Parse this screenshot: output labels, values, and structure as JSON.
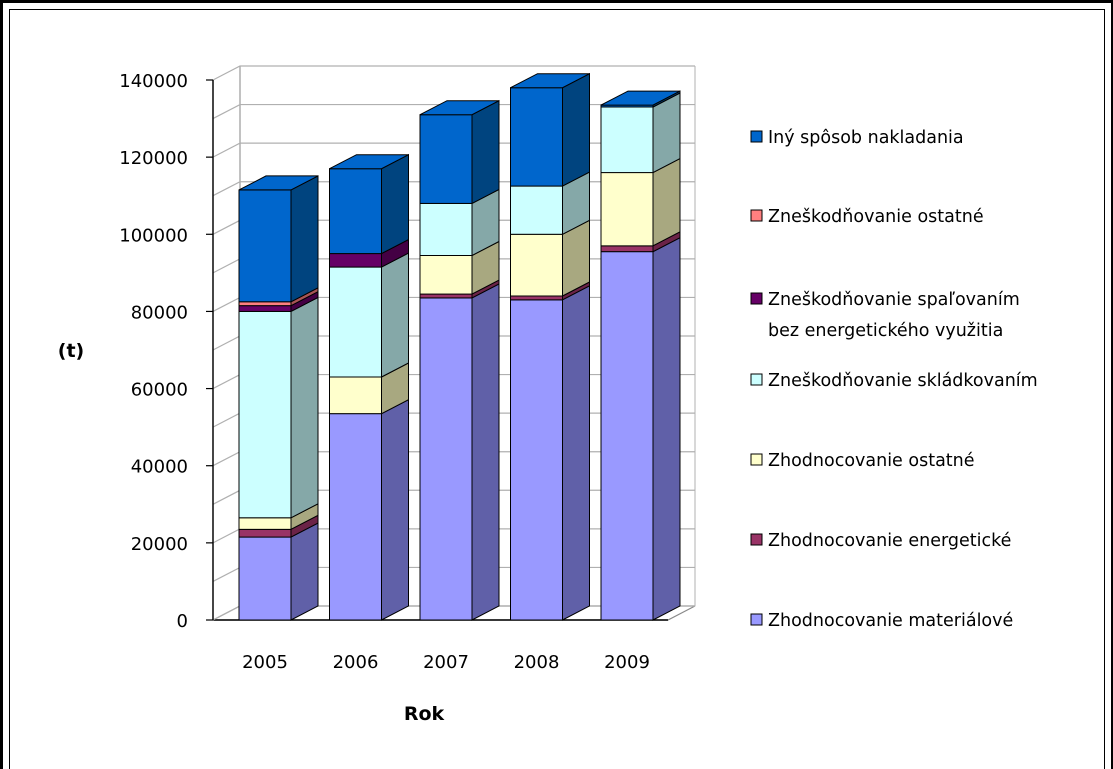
{
  "chart_data": {
    "type": "bar",
    "stacked": true,
    "three_d": true,
    "xlabel": "Rok",
    "ylabel": "(t)",
    "categories": [
      "2005",
      "2006",
      "2007",
      "2008",
      "2009"
    ],
    "ylim": [
      0,
      140000
    ],
    "yticks": [
      "0",
      "20000",
      "40000",
      "60000",
      "80000",
      "100000",
      "120000",
      "140000"
    ],
    "ytick_values": [
      0,
      20000,
      40000,
      60000,
      80000,
      100000,
      120000,
      140000
    ],
    "grid": true,
    "legend_position": "right",
    "series": [
      {
        "name": "Zhodnocovanie materiálové",
        "color": "#9999ff",
        "side": "#6060a8",
        "values": [
          21500,
          53500,
          83500,
          83000,
          95500
        ]
      },
      {
        "name": "Zhodnocovanie energetické",
        "color": "#993366",
        "side": "#6b2347",
        "values": [
          2000,
          0,
          1000,
          1000,
          1500
        ]
      },
      {
        "name": "Zhodnocovanie ostatné",
        "color": "#ffffcc",
        "side": "#a8a880",
        "values": [
          3000,
          9500,
          10000,
          16000,
          19000
        ]
      },
      {
        "name": "Zneškodňovanie skládkovaním",
        "color": "#ccffff",
        "side": "#85a8a8",
        "values": [
          53500,
          28500,
          13500,
          12500,
          17000
        ]
      },
      {
        "name": "Zneškodňovanie spaľovaním bez energetického využitia",
        "color": "#660066",
        "side": "#440044",
        "values": [
          1500,
          3500,
          0,
          0,
          0
        ]
      },
      {
        "name": "Zneškodňovanie ostatné",
        "color": "#ff8080",
        "side": "#a85555",
        "values": [
          1000,
          0,
          0,
          0,
          0
        ]
      },
      {
        "name": "Iný spôsob nakladania",
        "color": "#0066cc",
        "side": "#00447f",
        "values": [
          29000,
          22000,
          23000,
          25500,
          500
        ]
      }
    ],
    "legend_lines": [
      [
        "Iný spôsob nakladania"
      ],
      [
        "Zneškodňovanie ostatné"
      ],
      [
        "Zneškodňovanie spaľovaním",
        "bez energetického využitia"
      ],
      [
        "Zneškodňovanie skládkovaním"
      ],
      [
        "Zhodnocovanie ostatné"
      ],
      [
        "Zhodnocovanie energetické"
      ],
      [
        "Zhodnocovanie materiálové"
      ]
    ]
  }
}
